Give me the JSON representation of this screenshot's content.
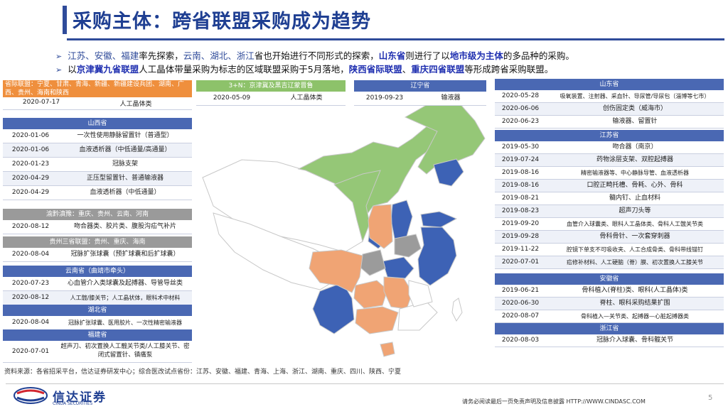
{
  "page": {
    "title": "采购主体：跨省联盟采购成为趋势",
    "page_number": "5",
    "source_note": "资料来源：各省招采平台，信达证券研发中心；综合医改试点省份：江苏、安徽、福建、青海、上海、浙江、湖南、重庆、四川、陕西、宁夏",
    "logo_cn": "信达证券",
    "logo_en": "CINDA SECURITIES",
    "footer": "请务必阅读最后一页免责声明及信息披露 HTTP://WWW.CINDASC.COM"
  },
  "bullets": [
    {
      "p1": "江苏、安徽、福建",
      "p2": "率先探索，",
      "p3": "云南、湖北、浙江",
      "p4": "省也开始进行不同形式的探索，",
      "p5": "山东省",
      "p6": "则进行了以",
      "p7": "地市级为主体",
      "p8": "的多品种的采购。"
    },
    {
      "p1": "以",
      "p2": "京津冀九省联盟",
      "p3": "人工晶体带量采购为标志的区域联盟采购于5月落地，",
      "p4": "陕西省际联盟",
      "p5": "、",
      "p6": "重庆四省联盟",
      "p7": "等形成跨省采购联盟。"
    }
  ],
  "tables": {
    "provincial": {
      "header": "省际联盟：宁夏、甘肃、青海、新疆、新疆建设兵团、湖南、广西、贵州、海南和陕西",
      "rows": [
        [
          "2020-07-17",
          "人工晶体类"
        ]
      ]
    },
    "shanxi": {
      "header": "山西省",
      "rows": [
        [
          "2020-01-06",
          "一次性使用静脉留置针（普通型）"
        ],
        [
          "2020-01-06",
          "血液透析器（中低通量/高通量）"
        ],
        [
          "2020-01-23",
          "冠脉支架"
        ],
        [
          "2020-04-29",
          "正压型留置针、普通输液器"
        ],
        [
          "2020-04-29",
          "血液透析器（中低通量）"
        ]
      ]
    },
    "yuqiandian": {
      "header": "渝黔滇豫：重庆、贵州、云南、河南",
      "rows": [
        [
          "2020-08-12",
          "吻合器类、胶片类、腹股沟疝气补片"
        ]
      ]
    },
    "guizhou": {
      "header": "贵州三省联盟：贵州、重庆、海南",
      "rows": [
        [
          "2020-08-04",
          "冠脉扩张球囊（预扩球囊和后扩球囊）"
        ]
      ]
    },
    "yunnan": {
      "header": "云南省（曲靖市牵头）",
      "rows": [
        [
          "2020-07-23",
          "心血管介入类球囊及起搏器、导管导丝类"
        ],
        [
          "2020-08-12",
          "人工髋/膝关节；人工晶状体，眼科术中材料"
        ]
      ]
    },
    "hubei": {
      "header": "湖北省",
      "rows": [
        [
          "2020-08-04",
          "冠脉扩张球囊、医用胶片、一次性精密输液器"
        ]
      ]
    },
    "fujian": {
      "header": "福建省",
      "rows": [
        [
          "2020-07-01",
          "超声刀、初次置换人工髋关节类/人工膝关节、密闭式留置针、镇痛泵"
        ]
      ]
    },
    "jingjinji": {
      "header": "3+N：京津冀及黑吉辽蒙晋鲁",
      "rows": [
        [
          "2020-05-09",
          "人工晶体类"
        ]
      ]
    },
    "liaoning": {
      "header": "辽宁省",
      "rows": [
        [
          "2019-09-23",
          "输液器"
        ]
      ]
    },
    "shandong": {
      "header": "山东省",
      "rows": [
        [
          "2020-05-28",
          "吸氧装置、注射器、采血针、导尿管/导尿包（淄博等七市）"
        ],
        [
          "2020-06-06",
          "创伤固定类（威海市）"
        ],
        [
          "2020-06-23",
          "输液器、留置针"
        ]
      ]
    },
    "jiangsu": {
      "header": "江苏省",
      "rows": [
        [
          "2019-05-30",
          "吻合器（南京）"
        ],
        [
          "2019-07-24",
          "药物涂层支架、双腔起搏器"
        ],
        [
          "2019-08-16",
          "精密输液器等、中心静脉导管、血液透析器"
        ],
        [
          "2019-08-16",
          "口腔正畸托槽、骨耗、心外、骨科"
        ],
        [
          "2019-08-21",
          "髓内钉、止血材料"
        ],
        [
          "2019-08-23",
          "超声刀头等"
        ],
        [
          "2019-09-20",
          "血管介入球囊类、眼科人工晶体类、骨科人工髋关节类"
        ],
        [
          "2019-09-28",
          "骨科骨针、一次套穿刺器"
        ],
        [
          "2019-11-22",
          "腔镜下单支不可吸收夹、人工合成骨类、骨科带线锚钉"
        ],
        [
          "2020-07-01",
          "疝修补材料、人工硬脑（脊）膜、初次置换人工膝关节"
        ]
      ]
    },
    "anhui": {
      "header": "安徽省",
      "rows": [
        [
          "2019-06-21",
          "骨科植入(脊柱)类、眼科(人工晶体)类"
        ],
        [
          "2020-06-30",
          "脊柱、眼科采购结果扩围"
        ],
        [
          "2020-08-07",
          "骨科植入—关节类、起搏器—心脏起搏器类"
        ]
      ]
    },
    "zhejiang": {
      "header": "浙江省",
      "rows": [
        [
          "2020-08-03",
          "冠脉介入球囊、骨科髋关节"
        ]
      ]
    }
  },
  "map_colors": {
    "green": "#95c777",
    "blue": "#3d62b5",
    "orange": "#f0a474",
    "gray": "#9b9b9b",
    "base": "#ffffff",
    "border": "#c8c8c8"
  }
}
